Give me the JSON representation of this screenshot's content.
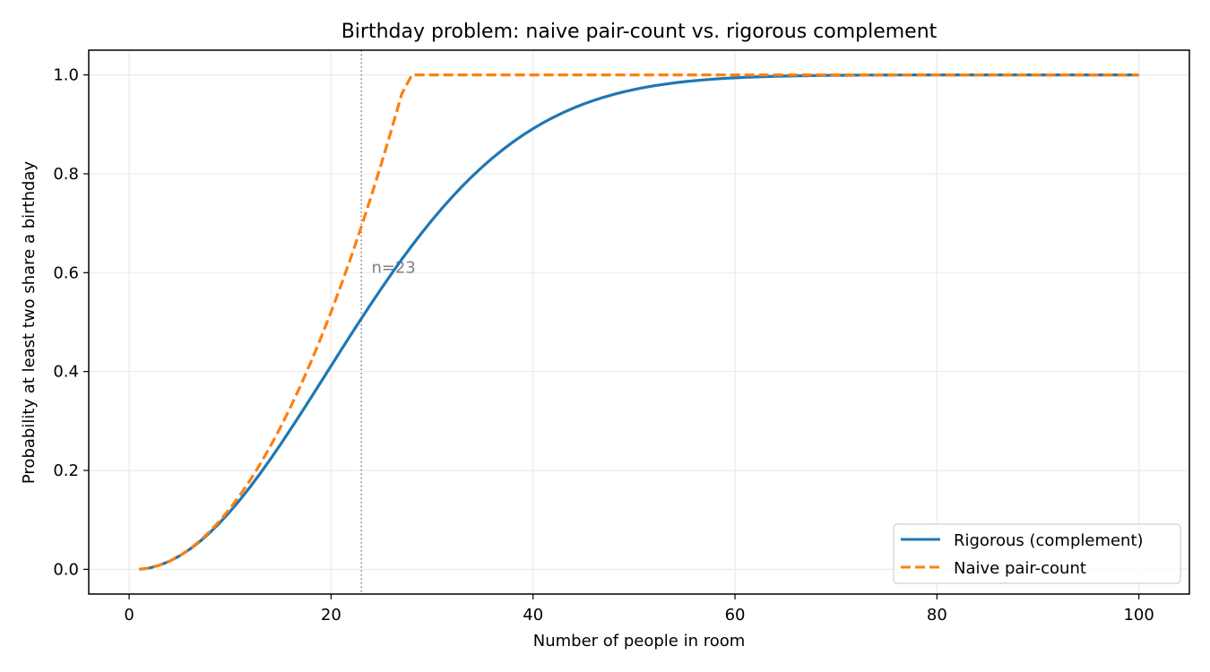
{
  "chart_data": {
    "type": "line",
    "title": "Birthday problem: naive pair-count vs. rigorous complement",
    "xlabel": "Number of people in room",
    "ylabel": "Probability at least two share a birthday",
    "xlim": [
      -4,
      105
    ],
    "ylim": [
      -0.05,
      1.05
    ],
    "xticks": [
      0,
      20,
      40,
      60,
      80,
      100
    ],
    "xtick_labels": [
      "0",
      "20",
      "40",
      "60",
      "80",
      "100"
    ],
    "yticks": [
      0.0,
      0.2,
      0.4,
      0.6,
      0.8,
      1.0
    ],
    "ytick_labels": [
      "0.0",
      "0.2",
      "0.4",
      "0.6",
      "0.8",
      "1.0"
    ],
    "grid": true,
    "legend_position": "lower right",
    "annotation": {
      "x": 23,
      "label": "n=23",
      "label_y": 0.6,
      "style": "dotted vertical line"
    },
    "x": [
      1,
      2,
      3,
      4,
      5,
      6,
      7,
      8,
      9,
      10,
      11,
      12,
      13,
      14,
      15,
      16,
      17,
      18,
      19,
      20,
      21,
      22,
      23,
      24,
      25,
      26,
      27,
      28,
      29,
      30,
      31,
      32,
      33,
      34,
      35,
      36,
      37,
      38,
      39,
      40,
      41,
      42,
      43,
      44,
      45,
      46,
      47,
      48,
      49,
      50,
      51,
      52,
      53,
      54,
      55,
      56,
      57,
      58,
      59,
      60,
      61,
      62,
      63,
      64,
      65,
      66,
      67,
      68,
      69,
      70,
      71,
      72,
      73,
      74,
      75,
      76,
      77,
      78,
      79,
      80,
      81,
      82,
      83,
      84,
      85,
      86,
      87,
      88,
      89,
      90,
      91,
      92,
      93,
      94,
      95,
      96,
      97,
      98,
      99,
      100
    ],
    "series": [
      {
        "name": "Rigorous (complement)",
        "color": "#1f77b4",
        "style": "solid",
        "values": [
          0,
          0.0027,
          0.0082,
          0.0164,
          0.0271,
          0.0405,
          0.0562,
          0.0743,
          0.0946,
          0.1169,
          0.1411,
          0.167,
          0.1944,
          0.2231,
          0.2529,
          0.2836,
          0.315,
          0.3469,
          0.3791,
          0.4114,
          0.4437,
          0.4757,
          0.5073,
          0.5383,
          0.5687,
          0.5982,
          0.6269,
          0.6545,
          0.681,
          0.7063,
          0.7305,
          0.7533,
          0.775,
          0.7953,
          0.8144,
          0.8322,
          0.8487,
          0.8641,
          0.8782,
          0.8912,
          0.9032,
          0.914,
          0.9239,
          0.9329,
          0.941,
          0.9483,
          0.9548,
          0.9606,
          0.9658,
          0.9704,
          0.9744,
          0.978,
          0.9811,
          0.9839,
          0.9863,
          0.9883,
          0.9901,
          0.9917,
          0.993,
          0.9941,
          0.9951,
          0.9959,
          0.9966,
          0.9972,
          0.9977,
          0.9981,
          0.9984,
          0.9987,
          0.999,
          0.9992,
          0.9993,
          0.9995,
          0.9996,
          0.9997,
          0.9997,
          0.9998,
          0.9998,
          0.9999,
          0.9999,
          0.9999,
          0.9999,
          1.0,
          1.0,
          1.0,
          1.0,
          1.0,
          1.0,
          1.0,
          1.0,
          1.0,
          1.0,
          1.0,
          1.0,
          1.0,
          1.0,
          1.0,
          1.0,
          1.0,
          1.0,
          1.0
        ]
      },
      {
        "name": "Naive pair-count",
        "color": "#ff7f0e",
        "style": "dashed",
        "values": [
          0,
          0.0027,
          0.0082,
          0.0164,
          0.0274,
          0.0411,
          0.0575,
          0.0767,
          0.0986,
          0.1233,
          0.1507,
          0.1808,
          0.2137,
          0.2493,
          0.2877,
          0.3288,
          0.3726,
          0.4192,
          0.4685,
          0.5205,
          0.5753,
          0.6329,
          0.6932,
          0.7562,
          0.8219,
          0.8904,
          0.9616,
          1.0,
          1.0,
          1.0,
          1.0,
          1.0,
          1.0,
          1.0,
          1.0,
          1.0,
          1.0,
          1.0,
          1.0,
          1.0,
          1.0,
          1.0,
          1.0,
          1.0,
          1.0,
          1.0,
          1.0,
          1.0,
          1.0,
          1.0,
          1.0,
          1.0,
          1.0,
          1.0,
          1.0,
          1.0,
          1.0,
          1.0,
          1.0,
          1.0,
          1.0,
          1.0,
          1.0,
          1.0,
          1.0,
          1.0,
          1.0,
          1.0,
          1.0,
          1.0,
          1.0,
          1.0,
          1.0,
          1.0,
          1.0,
          1.0,
          1.0,
          1.0,
          1.0,
          1.0,
          1.0,
          1.0,
          1.0,
          1.0,
          1.0,
          1.0,
          1.0,
          1.0,
          1.0,
          1.0,
          1.0,
          1.0,
          1.0,
          1.0,
          1.0,
          1.0,
          1.0,
          1.0,
          1.0,
          1.0
        ]
      }
    ]
  }
}
